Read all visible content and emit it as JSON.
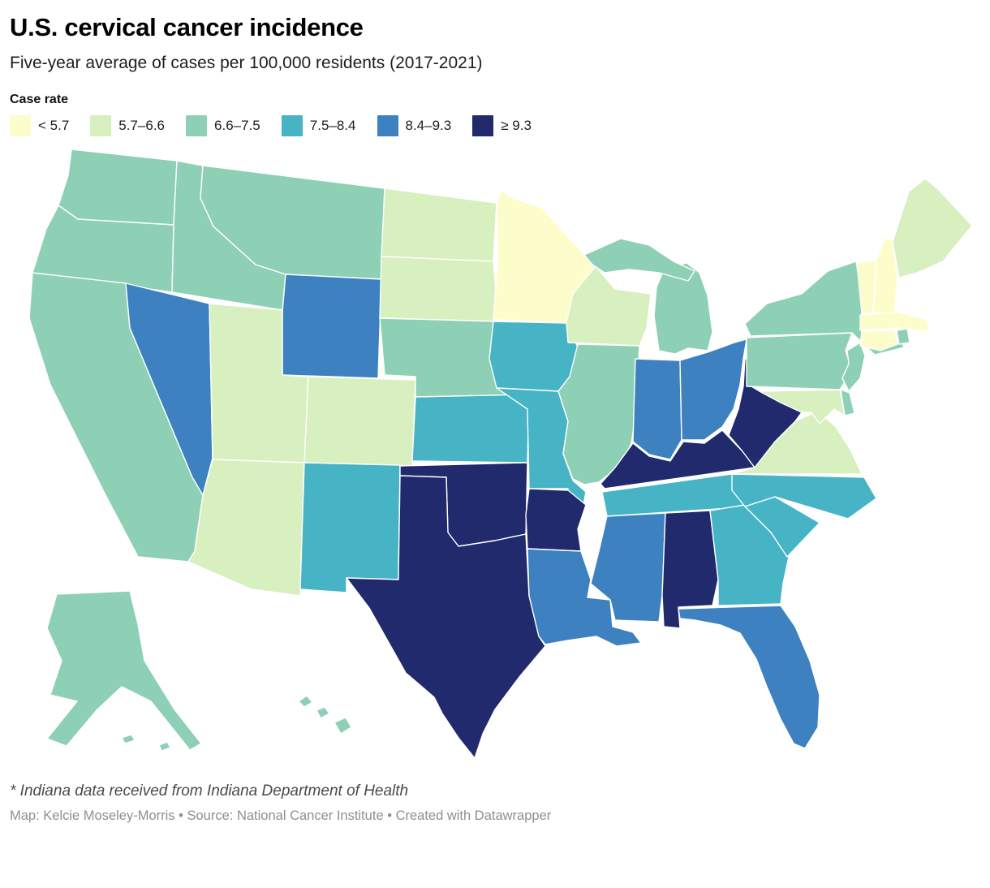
{
  "header": {
    "title": "U.S. cervical cancer incidence",
    "subtitle": "Five-year average of cases per 100,000 residents (2017-2021)"
  },
  "legend": {
    "title": "Case rate",
    "items": [
      {
        "label": "< 5.7",
        "color": "#fdfdcb"
      },
      {
        "label": "5.7–6.6",
        "color": "#d8efbf"
      },
      {
        "label": "6.6–7.5",
        "color": "#8dd0b5"
      },
      {
        "label": "7.5–8.4",
        "color": "#46b4c5"
      },
      {
        "label": "8.4–9.3",
        "color": "#3d81c1"
      },
      {
        "label": "≥ 9.3",
        "color": "#202a6c"
      }
    ]
  },
  "footer": {
    "footnote": "* Indiana data received from Indiana Department of Health",
    "credits": "Map: Kelcie Moseley-Morris • Source: National Cancer Institute • Created with Datawrapper"
  },
  "chart_data": {
    "type": "heatmap",
    "subtype": "us-state-choropleth",
    "unit": "cases per 100,000 residents",
    "period": "2017-2021",
    "bucket_labels": [
      "< 5.7",
      "5.7–6.6",
      "6.6–7.5",
      "7.5–8.4",
      "8.4–9.3",
      "≥ 9.3"
    ],
    "states": [
      {
        "code": "AL",
        "name": "Alabama",
        "bucket": 5
      },
      {
        "code": "AK",
        "name": "Alaska",
        "bucket": 2
      },
      {
        "code": "AZ",
        "name": "Arizona",
        "bucket": 1
      },
      {
        "code": "AR",
        "name": "Arkansas",
        "bucket": 5
      },
      {
        "code": "CA",
        "name": "California",
        "bucket": 2
      },
      {
        "code": "CO",
        "name": "Colorado",
        "bucket": 1
      },
      {
        "code": "CT",
        "name": "Connecticut",
        "bucket": 0
      },
      {
        "code": "DE",
        "name": "Delaware",
        "bucket": 2
      },
      {
        "code": "FL",
        "name": "Florida",
        "bucket": 4
      },
      {
        "code": "GA",
        "name": "Georgia",
        "bucket": 3
      },
      {
        "code": "HI",
        "name": "Hawaii",
        "bucket": 2
      },
      {
        "code": "ID",
        "name": "Idaho",
        "bucket": 2
      },
      {
        "code": "IL",
        "name": "Illinois",
        "bucket": 2
      },
      {
        "code": "IN",
        "name": "Indiana",
        "bucket": 4
      },
      {
        "code": "IA",
        "name": "Iowa",
        "bucket": 3
      },
      {
        "code": "KS",
        "name": "Kansas",
        "bucket": 3
      },
      {
        "code": "KY",
        "name": "Kentucky",
        "bucket": 5
      },
      {
        "code": "LA",
        "name": "Louisiana",
        "bucket": 4
      },
      {
        "code": "ME",
        "name": "Maine",
        "bucket": 1
      },
      {
        "code": "MD",
        "name": "Maryland",
        "bucket": 1
      },
      {
        "code": "MA",
        "name": "Massachusetts",
        "bucket": 0
      },
      {
        "code": "MI",
        "name": "Michigan",
        "bucket": 2
      },
      {
        "code": "MN",
        "name": "Minnesota",
        "bucket": 0
      },
      {
        "code": "MS",
        "name": "Mississippi",
        "bucket": 4
      },
      {
        "code": "MO",
        "name": "Missouri",
        "bucket": 3
      },
      {
        "code": "MT",
        "name": "Montana",
        "bucket": 2
      },
      {
        "code": "NE",
        "name": "Nebraska",
        "bucket": 2
      },
      {
        "code": "NV",
        "name": "Nevada",
        "bucket": 4
      },
      {
        "code": "NH",
        "name": "New Hampshire",
        "bucket": 0
      },
      {
        "code": "NJ",
        "name": "New Jersey",
        "bucket": 2
      },
      {
        "code": "NM",
        "name": "New Mexico",
        "bucket": 3
      },
      {
        "code": "NY",
        "name": "New York",
        "bucket": 2
      },
      {
        "code": "NC",
        "name": "North Carolina",
        "bucket": 3
      },
      {
        "code": "ND",
        "name": "North Dakota",
        "bucket": 1
      },
      {
        "code": "OH",
        "name": "Ohio",
        "bucket": 4
      },
      {
        "code": "OK",
        "name": "Oklahoma",
        "bucket": 5
      },
      {
        "code": "OR",
        "name": "Oregon",
        "bucket": 2
      },
      {
        "code": "PA",
        "name": "Pennsylvania",
        "bucket": 2
      },
      {
        "code": "RI",
        "name": "Rhode Island",
        "bucket": 2
      },
      {
        "code": "SC",
        "name": "South Carolina",
        "bucket": 3
      },
      {
        "code": "SD",
        "name": "South Dakota",
        "bucket": 1
      },
      {
        "code": "TN",
        "name": "Tennessee",
        "bucket": 3
      },
      {
        "code": "TX",
        "name": "Texas",
        "bucket": 5
      },
      {
        "code": "UT",
        "name": "Utah",
        "bucket": 1
      },
      {
        "code": "VT",
        "name": "Vermont",
        "bucket": 0
      },
      {
        "code": "VA",
        "name": "Virginia",
        "bucket": 1
      },
      {
        "code": "WA",
        "name": "Washington",
        "bucket": 2
      },
      {
        "code": "WV",
        "name": "West Virginia",
        "bucket": 5
      },
      {
        "code": "WI",
        "name": "Wisconsin",
        "bucket": 1
      },
      {
        "code": "WY",
        "name": "Wyoming",
        "bucket": 4
      }
    ]
  }
}
